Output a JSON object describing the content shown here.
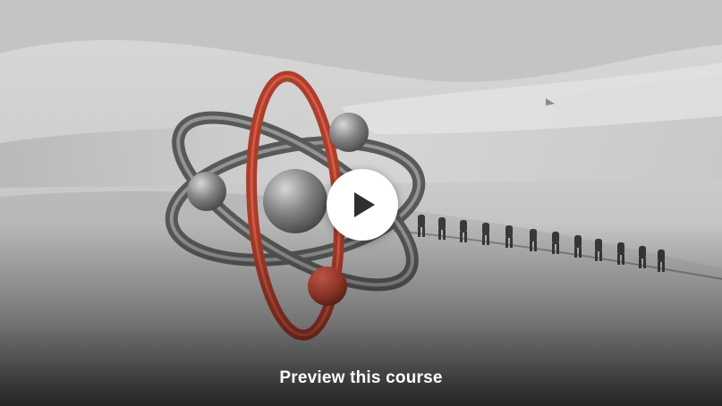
{
  "preview": {
    "label": "Preview this course",
    "play_icon": "play-icon",
    "colors": {
      "play_button_bg": "#ffffff",
      "play_icon": "#2d2f31",
      "label_text": "#ffffff",
      "atom_orbit_accent": "#c0392b",
      "atom_orbit_grey": "#5a5a5a"
    }
  }
}
